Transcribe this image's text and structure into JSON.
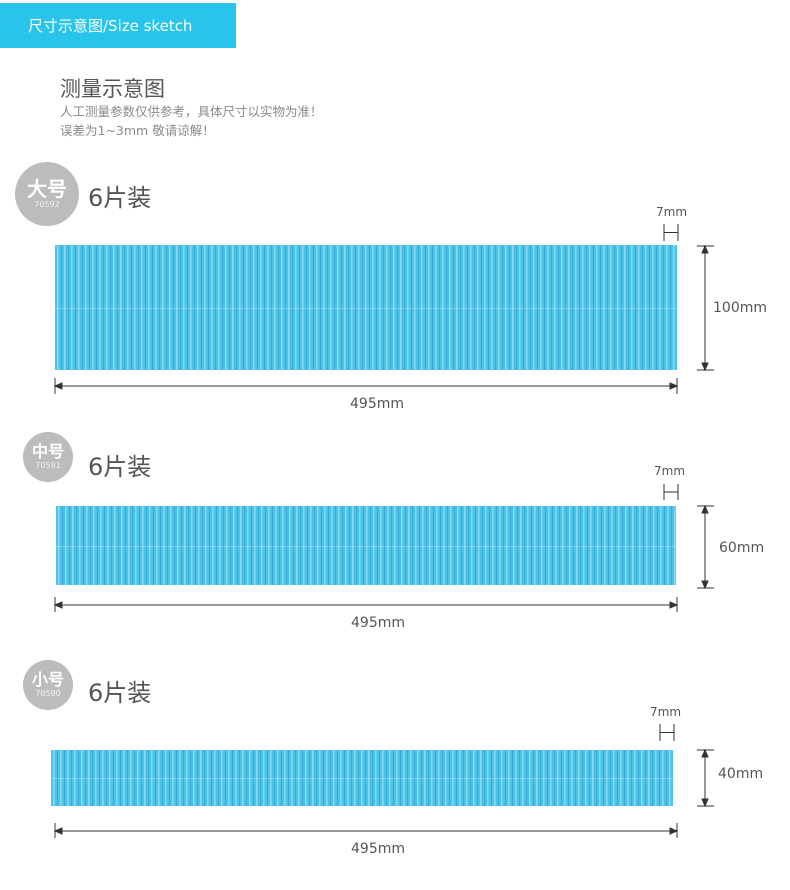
{
  "header": {
    "tab_label": "尺寸示意图/Size sketch"
  },
  "intro": {
    "title": "测量示意图",
    "note_line1": "人工测量参数仅供参考，具体尺寸以实物为准！",
    "note_line2": "误差为1~3mm 敬请谅解！"
  },
  "sizes": [
    {
      "badge": "大号",
      "code": "70592",
      "quantity": "6片装",
      "pitch_label": "7mm",
      "height_label": "100mm",
      "width_label": "495mm"
    },
    {
      "badge": "中号",
      "code": "70591",
      "quantity": "6片装",
      "pitch_label": "7mm",
      "height_label": "60mm",
      "width_label": "495mm"
    },
    {
      "badge": "小号",
      "code": "70590",
      "quantity": "6片装",
      "pitch_label": "7mm",
      "height_label": "40mm",
      "width_label": "495mm"
    }
  ],
  "colors": {
    "accent": "#29c4ec",
    "panel": "#4cc3e9",
    "badge": "#bcbcbc"
  }
}
